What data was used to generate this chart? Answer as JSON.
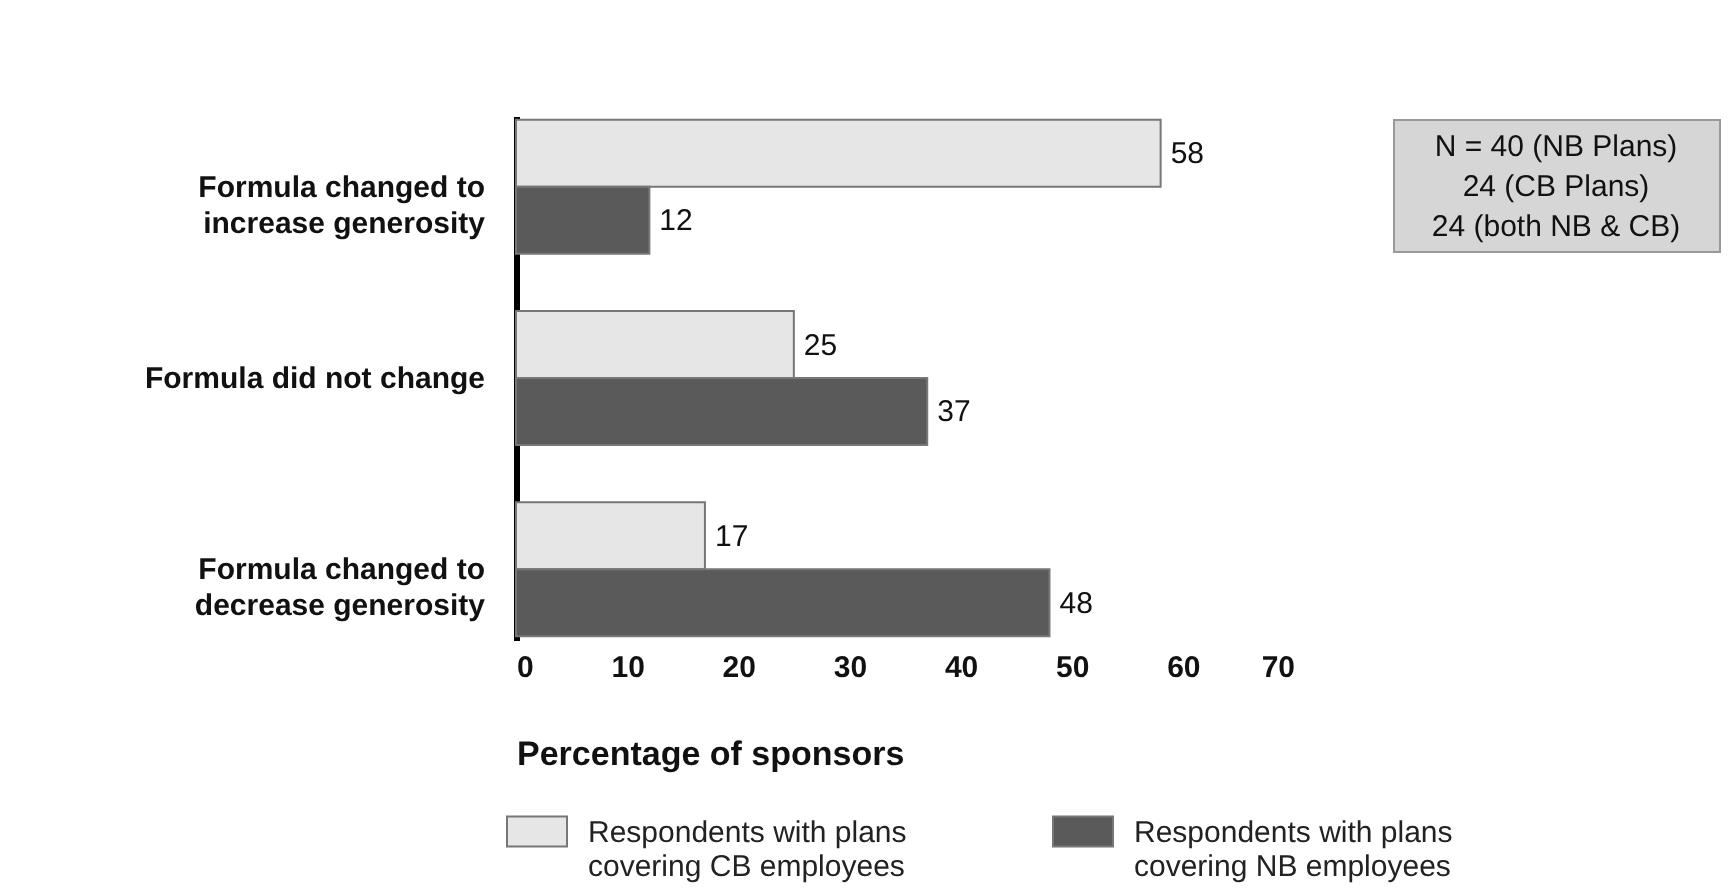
{
  "chart_data": {
    "type": "bar",
    "orientation": "horizontal",
    "categories": [
      "Formula changed to increase generosity",
      "Formula did not change",
      "Formula changed to decrease generosity"
    ],
    "series": [
      {
        "name": "Respondents with plans covering CB employees",
        "color": "#e6e6e6",
        "values": [
          58,
          25,
          17
        ]
      },
      {
        "name": "Respondents with plans covering NB employees",
        "color": "#5a5a5a",
        "values": [
          12,
          37,
          48
        ]
      }
    ],
    "xlabel": "Percentage of sponsors",
    "xlim": [
      0,
      70
    ],
    "xticks": [
      0,
      10,
      20,
      30,
      40,
      50,
      60,
      70
    ],
    "data_labels": true,
    "grid": false,
    "legend": "bottom",
    "annotations": [
      "N = 40 (NB Plans)",
      "24 (CB Plans)",
      "24 (both NB & CB)"
    ]
  }
}
